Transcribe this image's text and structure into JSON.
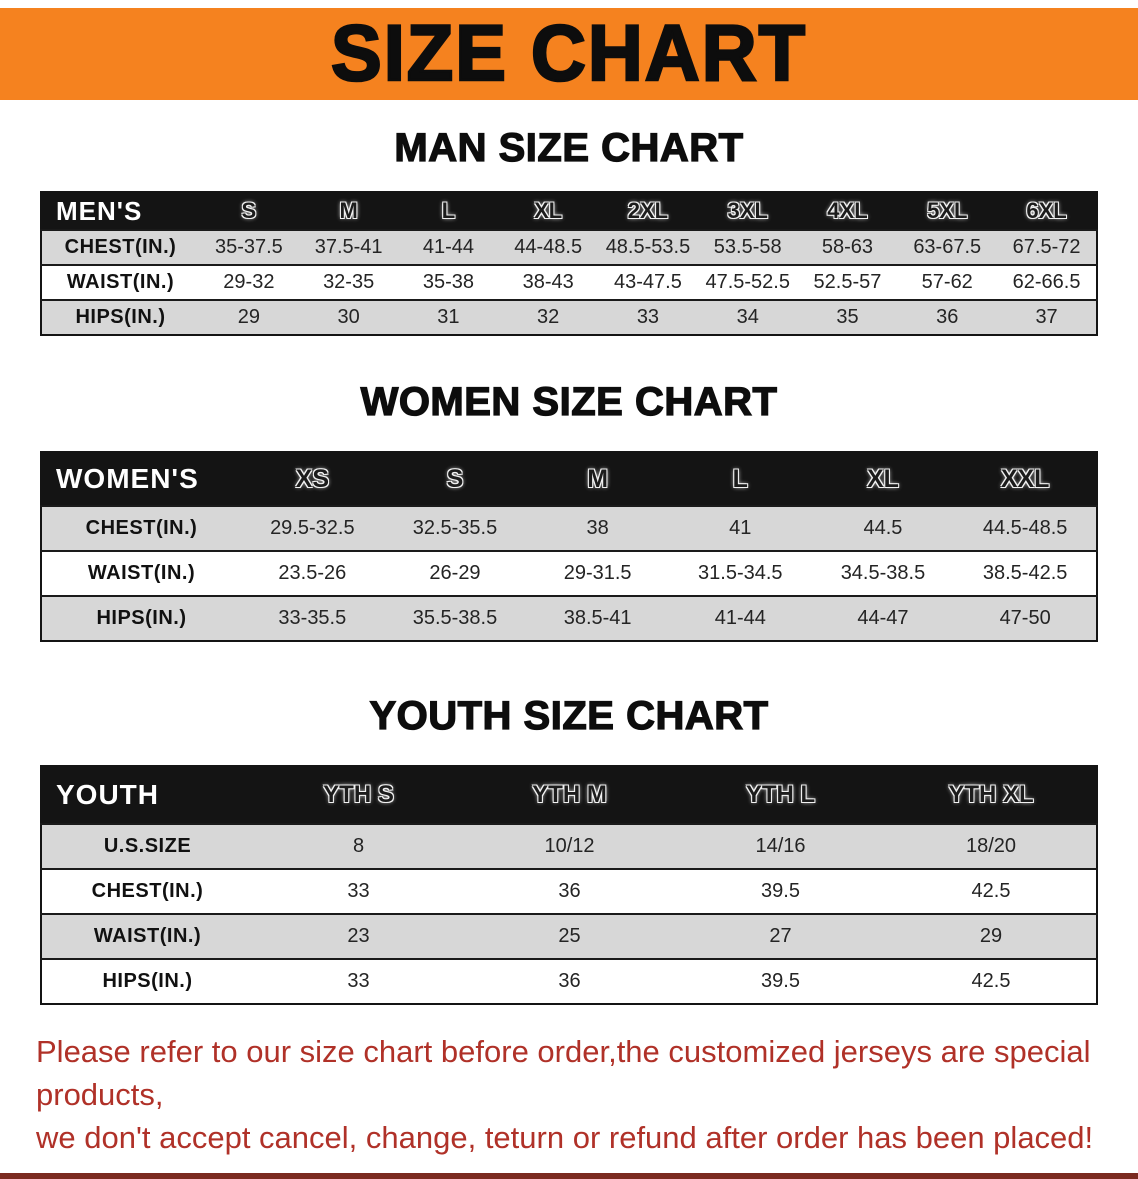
{
  "banner": {
    "title": "SIZE CHART"
  },
  "sections": [
    {
      "heading": "MAN SIZE CHART",
      "table": {
        "header": [
          "MEN'S",
          "S",
          "M",
          "L",
          "XL",
          "2XL",
          "3XL",
          "4XL",
          "5XL",
          "6XL"
        ],
        "rows": [
          [
            "CHEST(IN.)",
            "35-37.5",
            "37.5-41",
            "41-44",
            "44-48.5",
            "48.5-53.5",
            "53.5-58",
            "58-63",
            "63-67.5",
            "67.5-72"
          ],
          [
            "WAIST(IN.)",
            "29-32",
            "32-35",
            "35-38",
            "38-43",
            "43-47.5",
            "47.5-52.5",
            "52.5-57",
            "57-62",
            "62-66.5"
          ],
          [
            "HIPS(IN.)",
            "29",
            "30",
            "31",
            "32",
            "33",
            "34",
            "35",
            "36",
            "37"
          ]
        ]
      }
    },
    {
      "heading": "WOMEN SIZE CHART",
      "table": {
        "header": [
          "WOMEN'S",
          "XS",
          "S",
          "M",
          "L",
          "XL",
          "XXL"
        ],
        "rows": [
          [
            "CHEST(IN.)",
            "29.5-32.5",
            "32.5-35.5",
            "38",
            "41",
            "44.5",
            "44.5-48.5"
          ],
          [
            "WAIST(IN.)",
            "23.5-26",
            "26-29",
            "29-31.5",
            "31.5-34.5",
            "34.5-38.5",
            "38.5-42.5"
          ],
          [
            "HIPS(IN.)",
            "33-35.5",
            "35.5-38.5",
            "38.5-41",
            "41-44",
            "44-47",
            "47-50"
          ]
        ]
      }
    },
    {
      "heading": "YOUTH SIZE CHART",
      "table": {
        "header": [
          "YOUTH",
          "YTH S",
          "YTH M",
          "YTH L",
          "YTH XL"
        ],
        "rows": [
          [
            "U.S.SIZE",
            "8",
            "10/12",
            "14/16",
            "18/20"
          ],
          [
            "CHEST(IN.)",
            "33",
            "36",
            "39.5",
            "42.5"
          ],
          [
            "WAIST(IN.)",
            "23",
            "25",
            "27",
            "29"
          ],
          [
            "HIPS(IN.)",
            "33",
            "36",
            "39.5",
            "42.5"
          ]
        ]
      }
    }
  ],
  "disclaimer": {
    "lines": [
      "Please refer to our size chart before order,the customized jerseys are special products,",
      "we don't accept cancel, change, teturn or refund after order has been placed!"
    ]
  },
  "colors": {
    "banner_bg": "#F5821F",
    "banner_text": "#0D0D0D",
    "header_band": "#141414",
    "row_gray": "#D7D7D7",
    "disclaimer_red": "#B03128",
    "footer_bar_maroon": "#7B2A20"
  }
}
